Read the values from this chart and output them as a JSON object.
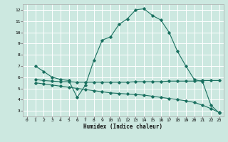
{
  "xlabel": "Humidex (Indice chaleur)",
  "bg_color": "#cce8e0",
  "grid_color": "#ffffff",
  "line_color": "#1a7060",
  "xlim": [
    -0.5,
    23.5
  ],
  "ylim": [
    2.5,
    12.5
  ],
  "xticks": [
    0,
    1,
    2,
    3,
    4,
    5,
    6,
    7,
    8,
    9,
    10,
    11,
    12,
    13,
    14,
    15,
    16,
    17,
    18,
    19,
    20,
    21,
    22,
    23
  ],
  "yticks": [
    3,
    4,
    5,
    6,
    7,
    8,
    9,
    10,
    11,
    12
  ],
  "curve1_x": [
    1,
    2,
    3,
    4,
    5,
    6,
    7,
    8,
    9,
    10,
    11,
    12,
    13,
    14,
    15,
    16,
    17,
    18,
    19,
    20,
    21,
    22,
    23
  ],
  "curve1_y": [
    7.0,
    6.5,
    6.0,
    5.8,
    5.7,
    4.2,
    5.3,
    7.5,
    9.3,
    9.6,
    10.7,
    11.2,
    12.0,
    12.1,
    11.5,
    11.1,
    10.0,
    8.3,
    7.0,
    5.8,
    5.6,
    3.5,
    2.8
  ],
  "curve2_x": [
    1,
    2,
    3,
    4,
    5,
    6,
    7,
    8,
    9,
    10,
    11,
    12,
    13,
    14,
    15,
    16,
    17,
    18,
    19,
    20,
    21,
    22,
    23
  ],
  "curve2_y": [
    5.8,
    5.7,
    5.65,
    5.6,
    5.6,
    5.55,
    5.55,
    5.55,
    5.55,
    5.55,
    5.55,
    5.55,
    5.6,
    5.6,
    5.6,
    5.6,
    5.65,
    5.65,
    5.65,
    5.65,
    5.7,
    5.7,
    5.7
  ],
  "curve3_x": [
    1,
    2,
    3,
    4,
    5,
    6,
    7,
    8,
    9,
    10,
    11,
    12,
    13,
    14,
    15,
    16,
    17,
    18,
    19,
    20,
    21,
    22,
    23
  ],
  "curve3_y": [
    5.5,
    5.4,
    5.3,
    5.2,
    5.1,
    5.0,
    4.9,
    4.8,
    4.7,
    4.6,
    4.55,
    4.5,
    4.45,
    4.4,
    4.3,
    4.2,
    4.1,
    4.0,
    3.9,
    3.75,
    3.5,
    3.2,
    2.85
  ]
}
